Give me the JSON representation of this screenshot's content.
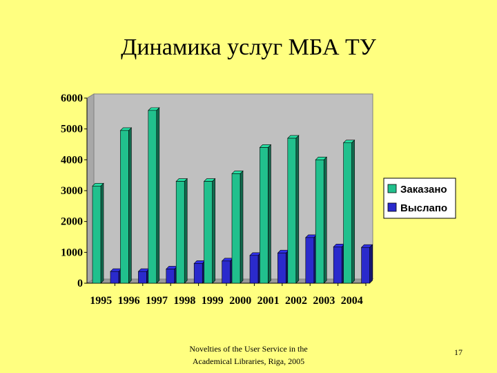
{
  "slide": {
    "title": "Динамика услуг МБА ТУ",
    "footer_line1": "Novelties of the User Service in the",
    "footer_line2": "Academical Libraries, Riga, 2005",
    "page_number": "17"
  },
  "colors": {
    "background": "#ffff80",
    "plot_area": "#c0c0c0",
    "series_ordered": "#21c08d",
    "series_sent": "#2a2acc"
  },
  "chart_data": {
    "type": "bar",
    "categories": [
      "1995",
      "1996",
      "1997",
      "1998",
      "1999",
      "2000",
      "2001",
      "2002",
      "2003",
      "2004"
    ],
    "series": [
      {
        "name": "Заказано",
        "values": [
          3150,
          4950,
          5600,
          3300,
          3300,
          3550,
          4400,
          4700,
          4000,
          4550
        ]
      },
      {
        "name": "Выслапо",
        "values": [
          380,
          380,
          460,
          640,
          720,
          900,
          980,
          1480,
          1180,
          1160
        ]
      }
    ],
    "yticks": [
      "0",
      "1000",
      "2000",
      "3000",
      "4000",
      "5000",
      "6000"
    ],
    "ylim": [
      0,
      6000
    ],
    "grid": false,
    "legend_position": "right",
    "style": "3d-columns"
  }
}
